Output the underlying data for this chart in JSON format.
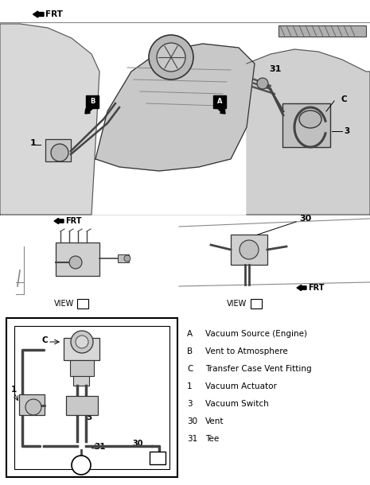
{
  "bg_color": "#ffffff",
  "line_color": "#000000",
  "gray_light": "#cccccc",
  "gray_med": "#aaaaaa",
  "gray_dark": "#666666",
  "legend_items": [
    {
      "key": "A",
      "desc": "Vacuum Source (Engine)"
    },
    {
      "key": "B",
      "desc": "Vent to Atmosphere"
    },
    {
      "key": "C",
      "desc": "Transfer Case Vent Fitting"
    },
    {
      "key": "1",
      "desc": "Vacuum Actuator"
    },
    {
      "key": "3",
      "desc": "Vacuum Switch"
    },
    {
      "key": "30",
      "desc": "Vent"
    },
    {
      "key": "31",
      "desc": "Tee"
    }
  ],
  "font_size_label": 7.5,
  "font_size_legend_key": 7.5,
  "font_size_legend_desc": 7.5,
  "font_size_view": 7.0,
  "font_size_num": 8.0
}
